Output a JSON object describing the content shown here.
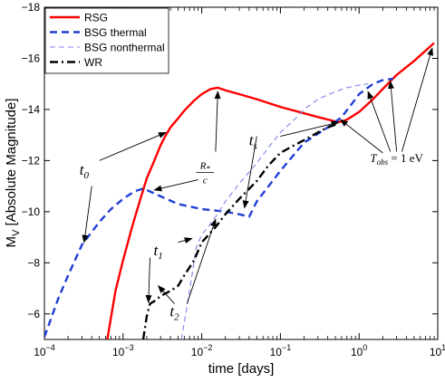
{
  "chart_data": {
    "type": "line",
    "xlabel": "time [days]",
    "ylabel": "M",
    "ylabel_sub": "V",
    "ylabel_rest": " [Absolute Magnitude]",
    "x_scale": "log",
    "xlim": [
      0.0001,
      10
    ],
    "ylim": [
      -5,
      -18
    ],
    "y_inverted": true,
    "xticks": [
      {
        "value": 0.0001,
        "base": "10",
        "exp": "−4"
      },
      {
        "value": 0.001,
        "base": "10",
        "exp": "−3"
      },
      {
        "value": 0.01,
        "base": "10",
        "exp": "−2"
      },
      {
        "value": 0.1,
        "base": "10",
        "exp": "−1"
      },
      {
        "value": 1,
        "base": "10",
        "exp": "0"
      },
      {
        "value": 10,
        "base": "10",
        "exp": "1"
      }
    ],
    "yticks": [
      -6,
      -8,
      -10,
      -12,
      -14,
      -16,
      -18
    ],
    "ytick_labels": [
      "−6",
      "−8",
      "−10",
      "−12",
      "−14",
      "−16",
      "−18"
    ],
    "grid": false,
    "legend_position": "top-left",
    "series": [
      {
        "name": "RSG",
        "color": "#ff0000",
        "style": "solid",
        "width": 2.4,
        "x": [
          0.00063,
          0.0008,
          0.001,
          0.0013,
          0.0017,
          0.002,
          0.0025,
          0.003,
          0.0035,
          0.004,
          0.005,
          0.006,
          0.008,
          0.01,
          0.013,
          0.016,
          0.02,
          0.03,
          0.05,
          0.1,
          0.2,
          0.35,
          0.55,
          0.7,
          1.0,
          1.5,
          2.0,
          3.0,
          5.0,
          9.0
        ],
        "y": [
          -5.0,
          -6.9,
          -8.1,
          -9.4,
          -10.6,
          -11.3,
          -12.0,
          -12.6,
          -13.0,
          -13.3,
          -13.65,
          -13.95,
          -14.35,
          -14.6,
          -14.8,
          -14.85,
          -14.75,
          -14.6,
          -14.4,
          -14.1,
          -13.85,
          -13.65,
          -13.5,
          -13.6,
          -13.9,
          -14.4,
          -14.8,
          -15.35,
          -15.9,
          -16.6
        ]
      },
      {
        "name": "BSG thermal",
        "color": "#1f3fd6",
        "style": "dashed",
        "width": 2.4,
        "x": [
          0.0001,
          0.00015,
          0.0002,
          0.0003,
          0.0005,
          0.0007,
          0.001,
          0.0014,
          0.0018,
          0.002,
          0.003,
          0.005,
          0.01,
          0.02,
          0.03,
          0.04,
          0.05,
          0.1,
          0.2,
          0.4,
          0.6,
          0.8,
          1.0,
          1.5,
          2.0,
          2.7
        ],
        "y": [
          -5.1,
          -6.6,
          -7.5,
          -8.7,
          -9.6,
          -10.1,
          -10.5,
          -10.8,
          -10.9,
          -10.85,
          -10.6,
          -10.3,
          -10.1,
          -10.0,
          -9.9,
          -9.8,
          -10.4,
          -11.6,
          -12.7,
          -13.3,
          -13.7,
          -14.2,
          -14.6,
          -15.0,
          -15.15,
          -15.2
        ]
      },
      {
        "name": "BSG nonthermal",
        "color": "#7d86e8",
        "style": "dashed-thin",
        "width": 1.1,
        "x": [
          0.0055,
          0.0065,
          0.0075,
          0.0085,
          0.01,
          0.012,
          0.015,
          0.02,
          0.03,
          0.05,
          0.07,
          0.1,
          0.15,
          0.2,
          0.3,
          0.5,
          0.7,
          1.0,
          1.3
        ],
        "y": [
          -5.0,
          -6.3,
          -7.5,
          -8.6,
          -9.1,
          -9.4,
          -9.8,
          -10.4,
          -11.1,
          -11.9,
          -12.5,
          -13.1,
          -13.6,
          -14.0,
          -14.4,
          -14.7,
          -14.85,
          -14.95,
          -15.0
        ]
      },
      {
        "name": "WR",
        "color": "#000000",
        "style": "dashdot",
        "width": 2.4,
        "x": [
          0.0018,
          0.002,
          0.0022,
          0.0025,
          0.003,
          0.004,
          0.005,
          0.006,
          0.008,
          0.01,
          0.015,
          0.02,
          0.03,
          0.05,
          0.07,
          0.1,
          0.15,
          0.2,
          0.3,
          0.4,
          0.55
        ],
        "y": [
          -5.0,
          -5.9,
          -6.4,
          -6.5,
          -6.7,
          -6.9,
          -7.1,
          -7.5,
          -8.1,
          -8.8,
          -9.4,
          -9.9,
          -10.5,
          -11.2,
          -11.8,
          -12.3,
          -12.6,
          -12.8,
          -13.1,
          -13.3,
          -13.45
        ]
      }
    ],
    "annotations": [
      {
        "id": "t0",
        "main": "t",
        "sub": "0",
        "text_at": [
          0.00032,
          -11.45
        ],
        "arrows": [
          {
            "from": [
              0.0005,
              -12.0
            ],
            "to": [
              0.0035,
              -13.1
            ]
          },
          {
            "from": [
              0.0004,
              -11.0
            ],
            "to": [
              0.00032,
              -8.8
            ]
          }
        ]
      },
      {
        "id": "R_over_c",
        "num": "R",
        "num_sub": "*",
        "den": "c",
        "text_at": [
          0.011,
          -11.5
        ],
        "arrows": [
          {
            "from": [
              0.009,
              -11.25
            ],
            "to": [
              0.0025,
              -10.85
            ]
          },
          {
            "from": [
              0.015,
              -12.35
            ],
            "to": [
              0.016,
              -14.7
            ]
          }
        ]
      },
      {
        "id": "ts",
        "main": "t",
        "sub": "s",
        "text_at": [
          0.045,
          -12.6
        ],
        "arrows": [
          {
            "from": [
              0.05,
              -12.95
            ],
            "to": [
              0.035,
              -10.15
            ]
          },
          {
            "from": [
              0.1,
              -12.95
            ],
            "to": [
              0.55,
              -13.5
            ]
          }
        ]
      },
      {
        "id": "t1",
        "main": "t",
        "sub": "1",
        "text_at": [
          0.0028,
          -8.3
        ],
        "arrows": [
          {
            "from": [
              0.0022,
              -8.2
            ],
            "to": [
              0.0021,
              -6.45
            ]
          },
          {
            "from": [
              0.005,
              -8.8
            ],
            "to": [
              0.0075,
              -8.95
            ]
          }
        ]
      },
      {
        "id": "t2",
        "main": "t",
        "sub": "2",
        "text_at": [
          0.0045,
          -5.9
        ],
        "arrows": [
          {
            "from": [
              0.0045,
              -6.4
            ],
            "to": [
              0.0028,
              -7.1
            ]
          },
          {
            "from": [
              0.0065,
              -6.4
            ],
            "to": [
              0.015,
              -9.7
            ]
          }
        ]
      },
      {
        "id": "tobs",
        "text_at": [
          3.0,
          -11.95
        ],
        "arrows": [
          {
            "from": [
              2.0,
              -12.3
            ],
            "to": [
              0.58,
              -13.6
            ]
          },
          {
            "from": [
              2.5,
              -12.35
            ],
            "to": [
              1.3,
              -14.7
            ]
          },
          {
            "from": [
              3.0,
              -12.35
            ],
            "to": [
              2.5,
              -15.1
            ]
          },
          {
            "from": [
              3.5,
              -12.35
            ],
            "to": [
              8.5,
              -16.4
            ]
          }
        ]
      }
    ],
    "tobs_label": {
      "T": "T",
      "sub": "obs",
      "eq": " = 1 eV"
    }
  }
}
